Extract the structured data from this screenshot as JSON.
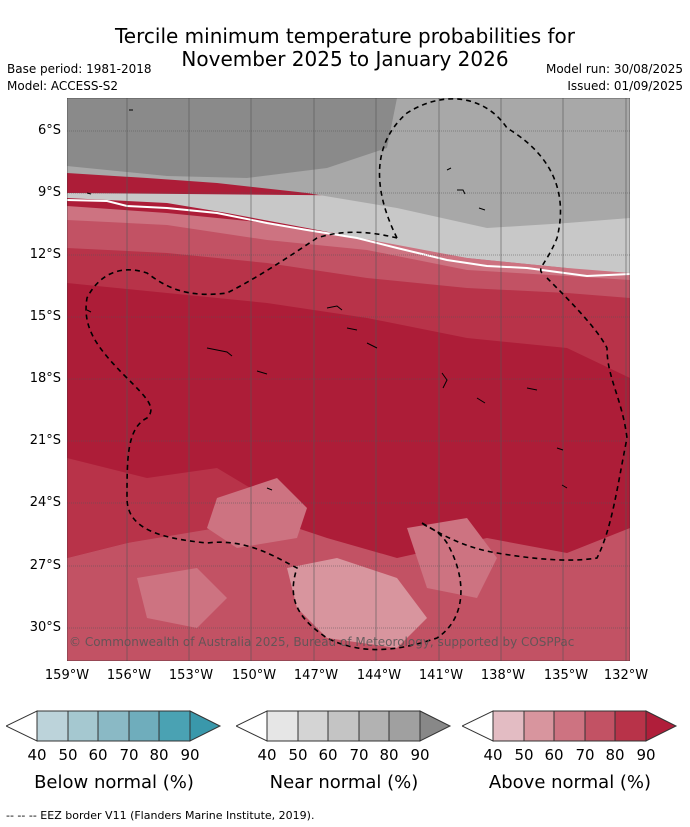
{
  "title_line1": "Tercile minimum temperature probabilities for",
  "title_line2": "November 2025 to January 2026",
  "base_period": "Base period: 1981-2018",
  "model": "Model: ACCESS-S2",
  "model_run": "Model run: 30/08/2025",
  "issued": "Issued: 01/09/2025",
  "map": {
    "lat_labels": [
      "6°S",
      "9°S",
      "12°S",
      "15°S",
      "18°S",
      "21°S",
      "24°S",
      "27°S",
      "30°S"
    ],
    "lon_labels": [
      "159°W",
      "156°W",
      "153°W",
      "150°W",
      "147°W",
      "144°W",
      "141°W",
      "138°W",
      "135°W",
      "132°W"
    ],
    "copyright": "© Commonwealth of Australia 2025, Bureau of Meteorology, supported by COSPPac"
  },
  "colorbars": [
    {
      "label": "Below normal (%)",
      "ticks": [
        "40",
        "50",
        "60",
        "70",
        "80",
        "90"
      ],
      "colors": [
        "#ffffff",
        "#bcd3da",
        "#a5c8d0",
        "#8ab9c5",
        "#6fadbc",
        "#4aa2b3"
      ]
    },
    {
      "label": "Near normal (%)",
      "ticks": [
        "40",
        "50",
        "60",
        "70",
        "80",
        "90"
      ],
      "colors": [
        "#ffffff",
        "#e6e6e6",
        "#d4d4d4",
        "#c4c4c4",
        "#b2b2b2",
        "#a0a0a0",
        "#888888"
      ]
    },
    {
      "label": "Above normal (%)",
      "ticks": [
        "40",
        "50",
        "60",
        "70",
        "80",
        "90"
      ],
      "colors": [
        "#ffffff",
        "#e3bcc3",
        "#d8959e",
        "#cd7381",
        "#c25264",
        "#b83349",
        "#b01e3a"
      ]
    }
  ],
  "footer": "--  --  -- EEZ border V11 (Flanders Marine Institute, 2019)."
}
